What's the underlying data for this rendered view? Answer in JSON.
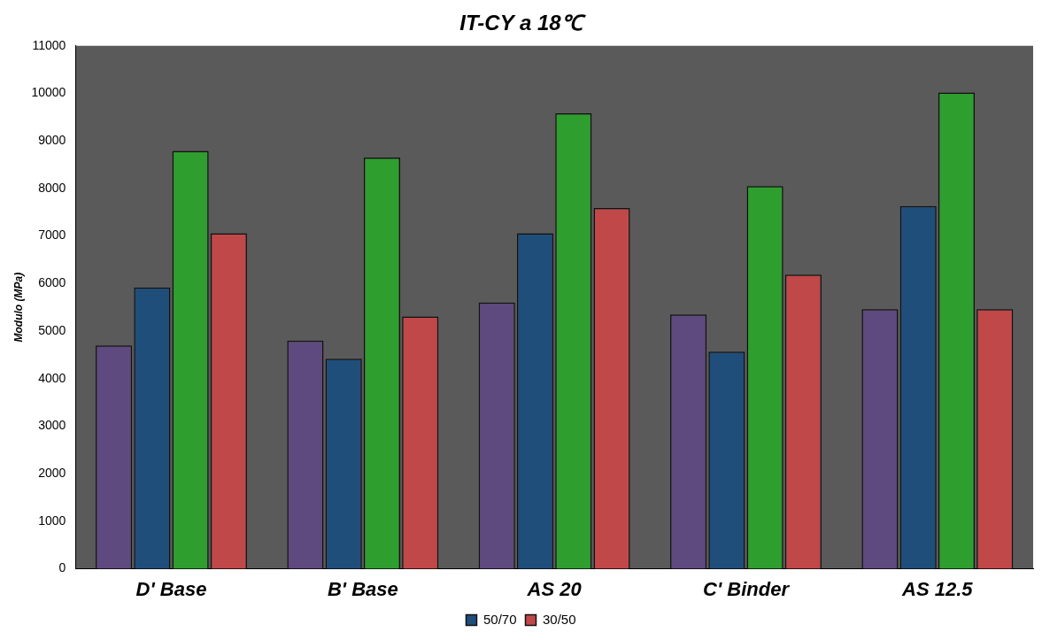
{
  "chart_data": {
    "type": "bar",
    "title": "IT-CY a 18℃",
    "ylabel": "Modulo (MPa)",
    "categories": [
      "D' Base",
      "B' Base",
      "AS 20",
      "C' Binder",
      "AS 12.5"
    ],
    "series": [
      {
        "color": "#5e4a7e",
        "values": [
          4700,
          4800,
          5600,
          5350,
          5460
        ]
      },
      {
        "name": "50/70",
        "color": "#1f4e7a",
        "values": [
          5920,
          4420,
          7060,
          4570,
          7630
        ]
      },
      {
        "color": "#2e9e2e",
        "values": [
          8790,
          8650,
          9580,
          8050,
          10020
        ]
      },
      {
        "name": "30/50",
        "color": "#c04848",
        "values": [
          7060,
          5310,
          7590,
          6190,
          5460
        ]
      }
    ],
    "ylim": [
      0,
      11000
    ],
    "yticks": [
      0,
      1000,
      2000,
      3000,
      4000,
      5000,
      6000,
      7000,
      8000,
      9000,
      10000,
      11000
    ],
    "grid": false,
    "legend": "bottom"
  }
}
